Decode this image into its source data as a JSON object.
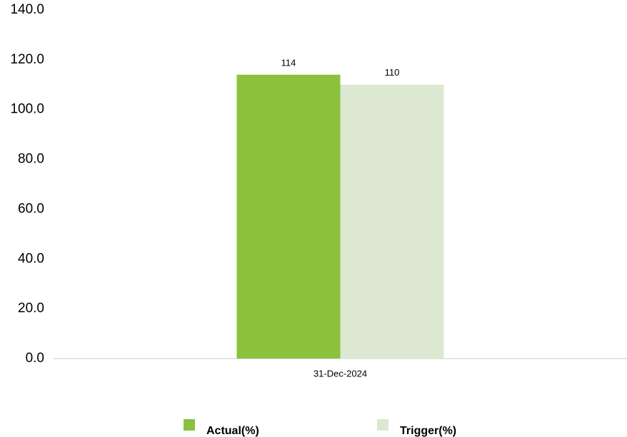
{
  "chart_data": {
    "type": "bar",
    "categories": [
      "31-Dec-2024"
    ],
    "series": [
      {
        "name": "Actual(%)",
        "color": "#8bc13c",
        "values": [
          114
        ]
      },
      {
        "name": "Trigger(%)",
        "color": "#dce8d1",
        "values": [
          110
        ]
      }
    ],
    "ylim": [
      0,
      140
    ],
    "yticks": [
      {
        "value": 0,
        "label": "0.0"
      },
      {
        "value": 20,
        "label": "20.0"
      },
      {
        "value": 40,
        "label": "40.0"
      },
      {
        "value": 60,
        "label": "60.0"
      },
      {
        "value": 80,
        "label": "80.0"
      },
      {
        "value": 100,
        "label": "100.0"
      },
      {
        "value": 120,
        "label": "120.0"
      },
      {
        "value": 140,
        "label": "140.0"
      }
    ],
    "grid": false,
    "legend": "bottom"
  }
}
